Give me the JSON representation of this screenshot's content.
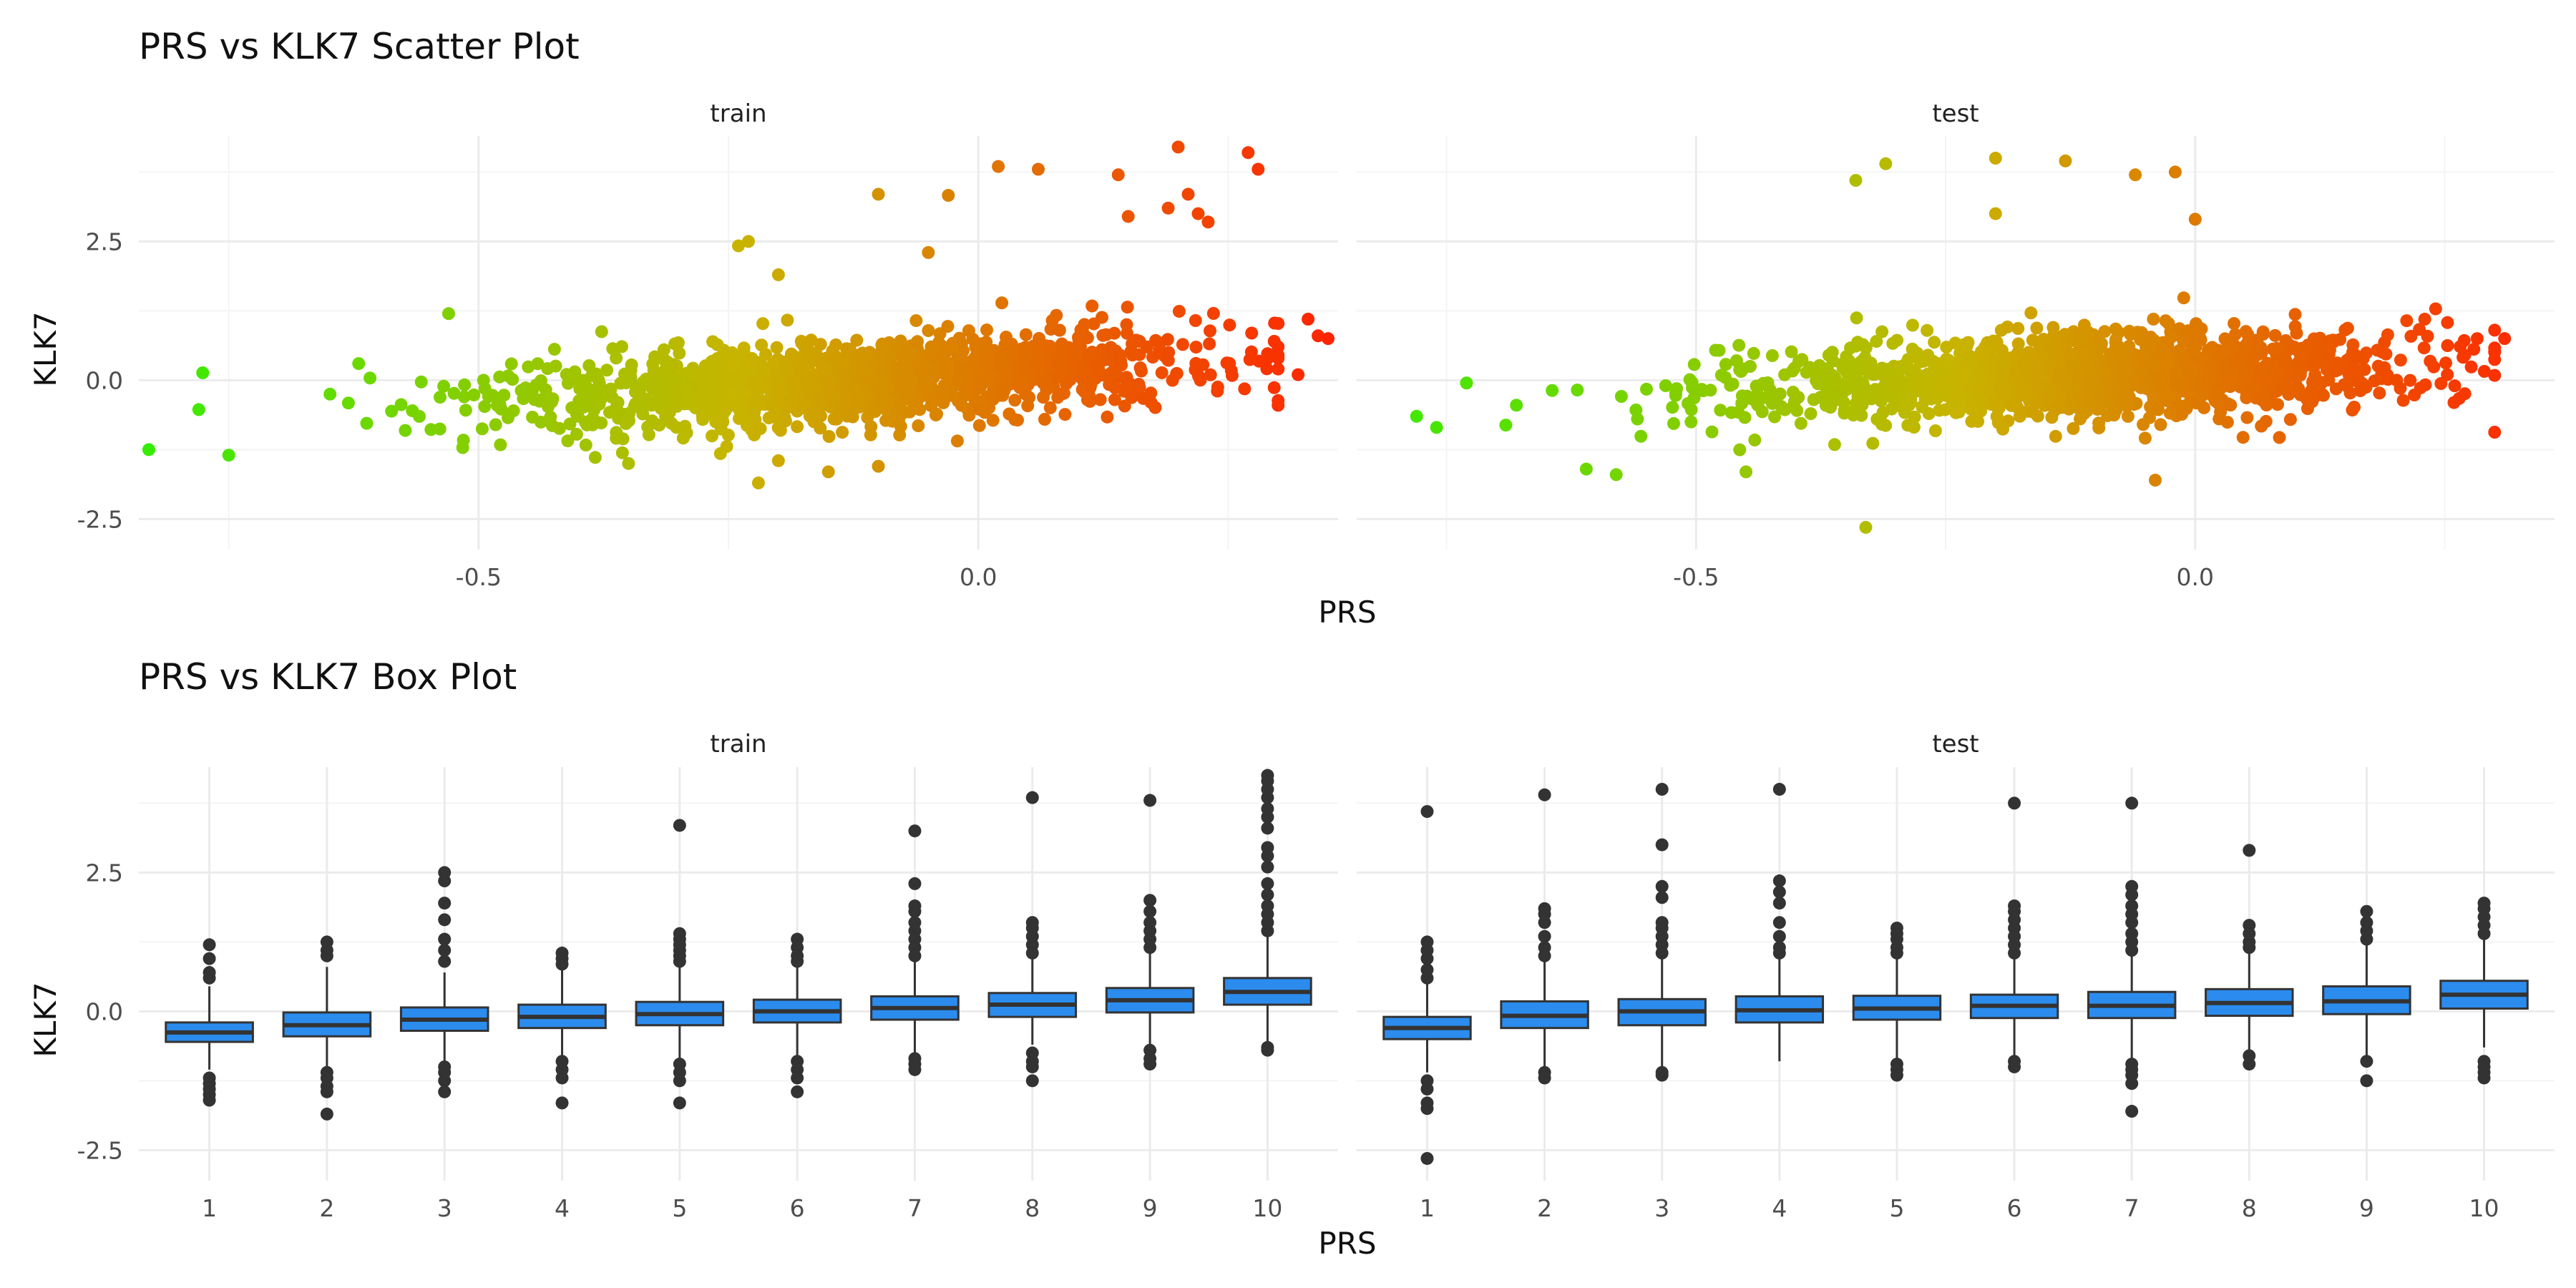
{
  "chart_data": [
    {
      "type": "scatter",
      "title": "PRS vs KLK7 Scatter Plot",
      "xlabel": "PRS",
      "ylabel": "KLK7",
      "facets": [
        "train",
        "test"
      ],
      "xlim": [
        -0.84,
        0.36
      ],
      "ylim": [
        -3.05,
        4.4
      ],
      "x_ticks": [
        {
          "value": -0.5,
          "label": "-0.5"
        },
        {
          "value": 0.0,
          "label": "0.0"
        }
      ],
      "y_ticks": [
        {
          "value": -2.5,
          "label": "-2.5"
        },
        {
          "value": 0.0,
          "label": "0.0"
        },
        {
          "value": 2.5,
          "label": "2.5"
        }
      ],
      "grid": true,
      "color_scale": {
        "low": "#33ee00",
        "mid": "#c8b400",
        "high": "#ff2200"
      },
      "points_per_facet": 1400,
      "trend": {
        "slope": 1.1,
        "intercept": 0.15
      },
      "outliers": {
        "train": [
          [
            -0.83,
            -1.25
          ],
          [
            -0.75,
            -1.35
          ],
          [
            -0.53,
            1.2
          ],
          [
            -0.62,
            0.3
          ],
          [
            -0.24,
            2.42
          ],
          [
            -0.23,
            2.5
          ],
          [
            -0.2,
            1.9
          ],
          [
            -0.22,
            -1.85
          ],
          [
            -0.15,
            -1.65
          ],
          [
            -0.1,
            -1.55
          ],
          [
            -0.35,
            -1.5
          ],
          [
            -0.2,
            -1.45
          ],
          [
            -0.03,
            3.33
          ],
          [
            0.02,
            3.85
          ],
          [
            0.06,
            3.8
          ],
          [
            -0.1,
            3.35
          ],
          [
            0.14,
            3.7
          ],
          [
            0.15,
            2.95
          ],
          [
            0.2,
            4.2
          ],
          [
            0.27,
            4.1
          ],
          [
            0.28,
            3.8
          ],
          [
            0.21,
            3.35
          ],
          [
            0.22,
            3.0
          ],
          [
            0.23,
            2.85
          ],
          [
            0.19,
            3.1
          ],
          [
            -0.05,
            2.3
          ],
          [
            0.34,
            0.8
          ],
          [
            0.32,
            0.1
          ],
          [
            0.33,
            1.1
          ],
          [
            0.35,
            0.75
          ]
        ],
        "test": [
          [
            -0.34,
            3.6
          ],
          [
            -0.31,
            3.9
          ],
          [
            -0.2,
            4.0
          ],
          [
            -0.13,
            3.95
          ],
          [
            -0.06,
            3.7
          ],
          [
            -0.02,
            3.75
          ],
          [
            -0.2,
            3.0
          ],
          [
            0.0,
            2.9
          ],
          [
            -0.33,
            -2.65
          ],
          [
            -0.45,
            -1.65
          ],
          [
            -0.61,
            -1.6
          ],
          [
            -0.58,
            -1.7
          ],
          [
            -0.78,
            -0.65
          ],
          [
            -0.76,
            -0.85
          ],
          [
            -0.68,
            -0.45
          ],
          [
            -0.73,
            -0.05
          ],
          [
            -0.04,
            -1.8
          ],
          [
            0.31,
            0.75
          ],
          [
            0.26,
            -0.1
          ],
          [
            0.27,
            0.45
          ],
          [
            0.23,
            1.1
          ]
        ]
      }
    },
    {
      "type": "box",
      "title": "PRS vs KLK7 Box Plot",
      "xlabel": "PRS",
      "ylabel": "KLK7",
      "facets": [
        "train",
        "test"
      ],
      "categories": [
        "1",
        "2",
        "3",
        "4",
        "5",
        "6",
        "7",
        "8",
        "9",
        "10"
      ],
      "ylim": [
        -3.05,
        4.4
      ],
      "y_ticks": [
        {
          "value": -2.5,
          "label": "-2.5"
        },
        {
          "value": 0.0,
          "label": "0.0"
        },
        {
          "value": 2.5,
          "label": "2.5"
        }
      ],
      "grid": true,
      "fill": "#2b8cee",
      "series": [
        {
          "facet": "train",
          "boxes": [
            {
              "q1": -0.55,
              "median": -0.38,
              "q3": -0.2,
              "lo": -1.05,
              "hi": 0.45,
              "outliers": [
                0.6,
                0.7,
                0.95,
                1.2,
                -1.2,
                -1.3,
                -1.4,
                -1.5,
                -1.6
              ]
            },
            {
              "q1": -0.45,
              "median": -0.25,
              "q3": -0.02,
              "lo": -1.0,
              "hi": 0.8,
              "outliers": [
                1.0,
                1.1,
                1.25,
                -1.1,
                -1.2,
                -1.35,
                -1.45,
                -1.85
              ]
            },
            {
              "q1": -0.35,
              "median": -0.15,
              "q3": 0.07,
              "lo": -0.95,
              "hi": 0.7,
              "outliers": [
                0.9,
                1.1,
                1.3,
                1.65,
                1.95,
                2.35,
                2.5,
                -1.0,
                -1.1,
                -1.25,
                -1.45
              ]
            },
            {
              "q1": -0.3,
              "median": -0.1,
              "q3": 0.12,
              "lo": -0.85,
              "hi": 0.75,
              "outliers": [
                0.85,
                0.95,
                1.05,
                -0.9,
                -1.05,
                -1.2,
                -1.65
              ]
            },
            {
              "q1": -0.25,
              "median": -0.05,
              "q3": 0.17,
              "lo": -0.85,
              "hi": 0.8,
              "outliers": [
                0.9,
                1.0,
                1.1,
                1.2,
                1.3,
                1.4,
                3.35,
                -0.95,
                -1.1,
                -1.25,
                -1.65
              ]
            },
            {
              "q1": -0.2,
              "median": 0.0,
              "q3": 0.21,
              "lo": -0.8,
              "hi": 0.8,
              "outliers": [
                0.9,
                1.0,
                1.15,
                1.3,
                -0.9,
                -1.05,
                -1.2,
                -1.45
              ]
            },
            {
              "q1": -0.15,
              "median": 0.06,
              "q3": 0.27,
              "lo": -0.75,
              "hi": 0.9,
              "outliers": [
                1.0,
                1.15,
                1.3,
                1.45,
                1.6,
                1.8,
                1.9,
                2.3,
                3.25,
                -0.85,
                -0.95,
                -1.05
              ]
            },
            {
              "q1": -0.1,
              "median": 0.12,
              "q3": 0.33,
              "lo": -0.6,
              "hi": 0.95,
              "outliers": [
                1.05,
                1.2,
                1.35,
                1.5,
                1.6,
                3.85,
                -0.75,
                -0.9,
                -1.0,
                -1.25
              ]
            },
            {
              "q1": -0.02,
              "median": 0.2,
              "q3": 0.42,
              "lo": -0.6,
              "hi": 1.05,
              "outliers": [
                1.15,
                1.3,
                1.45,
                1.6,
                1.8,
                2.0,
                3.8,
                -0.7,
                -0.85,
                -0.95
              ]
            },
            {
              "q1": 0.12,
              "median": 0.35,
              "q3": 0.6,
              "lo": -0.55,
              "hi": 1.35,
              "outliers": [
                1.45,
                1.6,
                1.75,
                1.9,
                2.1,
                2.3,
                2.6,
                2.8,
                2.95,
                3.3,
                3.5,
                3.65,
                3.85,
                4.0,
                4.15,
                4.25,
                -0.65,
                -0.7
              ]
            }
          ]
        },
        {
          "facet": "test",
          "boxes": [
            {
              "q1": -0.5,
              "median": -0.3,
              "q3": -0.1,
              "lo": -1.1,
              "hi": 0.5,
              "outliers": [
                0.6,
                0.75,
                0.95,
                1.1,
                1.25,
                3.6,
                -1.25,
                -1.4,
                -1.65,
                -1.75,
                -2.65
              ]
            },
            {
              "q1": -0.3,
              "median": -0.08,
              "q3": 0.18,
              "lo": -1.0,
              "hi": 0.9,
              "outliers": [
                1.0,
                1.15,
                1.35,
                1.6,
                1.75,
                1.85,
                3.9,
                -1.1,
                -1.2
              ]
            },
            {
              "q1": -0.25,
              "median": 0.0,
              "q3": 0.22,
              "lo": -1.0,
              "hi": 0.95,
              "outliers": [
                1.05,
                1.2,
                1.35,
                1.5,
                1.6,
                2.05,
                2.25,
                3.0,
                4.0,
                -1.1,
                -1.15
              ]
            },
            {
              "q1": -0.2,
              "median": 0.02,
              "q3": 0.27,
              "lo": -0.9,
              "hi": 0.95,
              "outliers": [
                1.05,
                1.15,
                1.35,
                1.6,
                1.95,
                2.15,
                2.35,
                4.0
              ]
            },
            {
              "q1": -0.15,
              "median": 0.05,
              "q3": 0.28,
              "lo": -0.85,
              "hi": 0.95,
              "outliers": [
                1.05,
                1.15,
                1.3,
                1.4,
                1.5,
                -0.95,
                -1.05,
                -1.15
              ]
            },
            {
              "q1": -0.12,
              "median": 0.1,
              "q3": 0.3,
              "lo": -0.8,
              "hi": 0.95,
              "outliers": [
                1.05,
                1.2,
                1.35,
                1.5,
                1.65,
                1.8,
                1.9,
                3.75,
                -0.9,
                -1.0
              ]
            },
            {
              "q1": -0.12,
              "median": 0.1,
              "q3": 0.35,
              "lo": -0.85,
              "hi": 1.0,
              "outliers": [
                1.1,
                1.25,
                1.4,
                1.6,
                1.75,
                1.9,
                2.1,
                2.25,
                3.75,
                -0.95,
                -1.05,
                -1.15,
                -1.3,
                -1.8
              ]
            },
            {
              "q1": -0.08,
              "median": 0.15,
              "q3": 0.4,
              "lo": -0.75,
              "hi": 1.05,
              "outliers": [
                1.15,
                1.25,
                1.4,
                1.55,
                2.9,
                -0.8,
                -0.95
              ]
            },
            {
              "q1": -0.05,
              "median": 0.18,
              "q3": 0.45,
              "lo": -0.8,
              "hi": 1.2,
              "outliers": [
                1.3,
                1.45,
                1.6,
                1.8,
                -0.9,
                -1.25
              ]
            },
            {
              "q1": 0.05,
              "median": 0.3,
              "q3": 0.55,
              "lo": -0.65,
              "hi": 1.3,
              "outliers": [
                1.4,
                1.55,
                1.7,
                1.85,
                1.95,
                -0.9,
                -1.0,
                -1.1,
                -1.2
              ]
            }
          ]
        }
      ]
    }
  ]
}
